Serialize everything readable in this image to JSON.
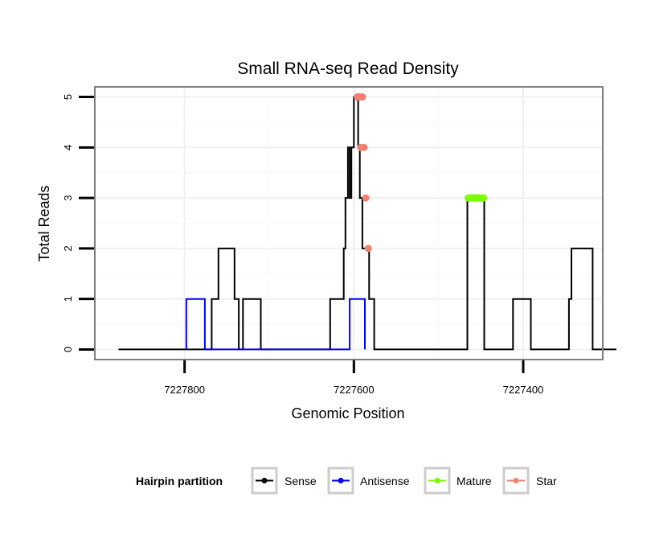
{
  "chart_data": {
    "type": "line",
    "title": "Small RNA-seq Read Density",
    "xlabel": "Genomic Position",
    "ylabel": "Total Reads",
    "xlim": [
      7227906,
      7227306
    ],
    "x_reversed": true,
    "ylim": [
      -0.2,
      5.2
    ],
    "x_ticks": [
      7227800,
      7227600,
      7227400
    ],
    "x_tick_labels": [
      "7227800",
      "7227600",
      "7227400"
    ],
    "y_ticks": [
      0,
      1,
      2,
      3,
      4,
      5
    ],
    "y_tick_labels": [
      "0",
      "1",
      "2",
      "3",
      "4",
      "5"
    ],
    "grid": true,
    "legend": {
      "title": "Hairpin partition",
      "position": "bottom",
      "entries": [
        {
          "key": "sense",
          "label": "Sense",
          "color": "#000000"
        },
        {
          "key": "antisense",
          "label": "Antisense",
          "color": "#0000ff"
        },
        {
          "key": "mature",
          "label": "Mature",
          "color": "#7cfc00"
        },
        {
          "key": "star",
          "label": "Star",
          "color": "#f08070"
        }
      ]
    },
    "series": [
      {
        "name": "Sense",
        "color": "#000000",
        "kind": "line",
        "x": [
          7227878,
          7227768,
          7227768,
          7227766,
          7227766,
          7227760,
          7227760,
          7227741,
          7227741,
          7227736,
          7227736,
          7227734,
          7227734,
          7227731,
          7227731,
          7227710,
          7227710,
          7227708,
          7227708,
          7227628,
          7227628,
          7227625,
          7227625,
          7227612,
          7227612,
          7227610,
          7227610,
          7227607,
          7227607,
          7227605,
          7227605,
          7227603,
          7227603,
          7227600,
          7227600,
          7227599,
          7227599,
          7227595,
          7227595,
          7227593,
          7227593,
          7227590,
          7227590,
          7227585,
          7227585,
          7227582,
          7227582,
          7227576,
          7227576,
          7227574,
          7227574,
          7227466,
          7227466,
          7227446,
          7227446,
          7227412,
          7227412,
          7227391,
          7227391,
          7227346,
          7227346,
          7227343,
          7227343,
          7227318,
          7227318,
          7227290
        ],
        "y": [
          0,
          0,
          1,
          1,
          1,
          1,
          2,
          2,
          1,
          1,
          0,
          0,
          0,
          0,
          1,
          1,
          0,
          0,
          0,
          0,
          1,
          1,
          1,
          1,
          2,
          2,
          3,
          3,
          4,
          4,
          3,
          3,
          4,
          4,
          5,
          5,
          5,
          5,
          4,
          4,
          3,
          3,
          2,
          2,
          2,
          2,
          1,
          1,
          0,
          0,
          0,
          0,
          3,
          3,
          0,
          0,
          1,
          1,
          0,
          0,
          1,
          1,
          2,
          2,
          0,
          0
        ]
      },
      {
        "name": "Antisense",
        "color": "#0000ff",
        "kind": "line",
        "x": [
          7227798,
          7227798,
          7227776,
          7227776,
          7227605,
          7227605,
          7227587,
          7227587
        ],
        "y": [
          0,
          1,
          1,
          0,
          0,
          1,
          1,
          0
        ]
      },
      {
        "name": "Mature",
        "color": "#7cfc00",
        "kind": "segment",
        "x": [
          7227465,
          7227447
        ],
        "y": [
          3,
          3
        ]
      },
      {
        "name": "Star",
        "color": "#f08070",
        "kind": "points",
        "x": [
          7227596,
          7227593,
          7227590,
          7227588,
          7227592,
          7227586,
          7227583
        ],
        "y": [
          5,
          5,
          5,
          4,
          4,
          3,
          2
        ]
      }
    ]
  }
}
